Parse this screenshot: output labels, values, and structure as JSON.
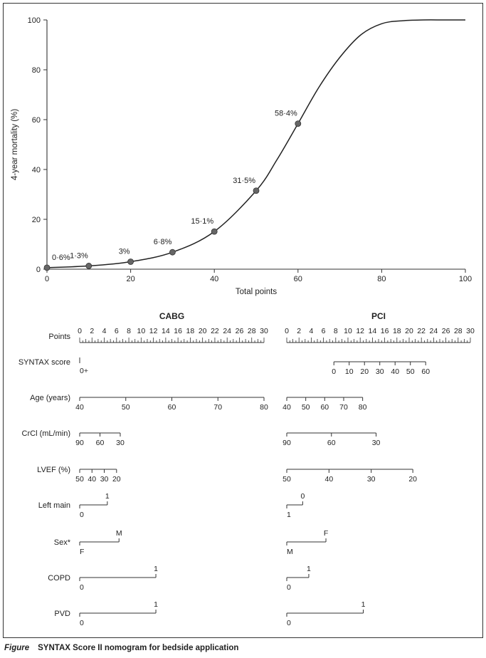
{
  "caption": {
    "label": "Figure",
    "text": "SYNTAX Score II nomogram for bedside application"
  },
  "chart_data": [
    {
      "type": "line",
      "title": "",
      "xlabel": "Total points",
      "ylabel": "4-year mortality (%)",
      "xlim": [
        0,
        100
      ],
      "ylim": [
        0,
        100
      ],
      "x_ticks": [
        0,
        20,
        40,
        60,
        80,
        100
      ],
      "y_ticks": [
        0,
        20,
        40,
        60,
        80,
        100
      ],
      "curve": {
        "x": [
          0,
          10,
          20,
          30,
          40,
          50,
          55,
          60,
          65,
          70,
          75,
          80,
          85,
          90,
          95,
          100
        ],
        "y": [
          0.6,
          1.3,
          3,
          6.8,
          15.1,
          31.5,
          44,
          58.4,
          73,
          85,
          94,
          98.5,
          99.7,
          100,
          100,
          100
        ]
      },
      "points": [
        {
          "x": 0,
          "y": 0.6,
          "label": "0·6%"
        },
        {
          "x": 10,
          "y": 1.3,
          "label": "1·3%"
        },
        {
          "x": 20,
          "y": 3,
          "label": "3%"
        },
        {
          "x": 30,
          "y": 6.8,
          "label": "6·8%"
        },
        {
          "x": 40,
          "y": 15.1,
          "label": "15·1%"
        },
        {
          "x": 50,
          "y": 31.5,
          "label": "31·5%"
        },
        {
          "x": 60,
          "y": 58.4,
          "label": "58·4%"
        }
      ]
    },
    {
      "type": "nomogram",
      "title": "SYNTAX Score II nomogram",
      "points_range": [
        0,
        30
      ],
      "points_tick_labels": [
        0,
        2,
        4,
        6,
        8,
        10,
        12,
        14,
        16,
        18,
        20,
        22,
        24,
        26,
        28,
        30
      ],
      "panels": [
        {
          "name": "CABG",
          "rows": [
            {
              "label": "Points",
              "type": "points"
            },
            {
              "label": "SYNTAX score",
              "type": "marker",
              "ticks": [
                {
                  "pos": 0,
                  "label": "0+"
                }
              ]
            },
            {
              "label": "Age (years)",
              "type": "scale",
              "ticks": [
                {
                  "pos": 0,
                  "label": "40"
                },
                {
                  "pos": 7.5,
                  "label": "50"
                },
                {
                  "pos": 15,
                  "label": "60"
                },
                {
                  "pos": 22.5,
                  "label": "70"
                },
                {
                  "pos": 30,
                  "label": "80"
                }
              ]
            },
            {
              "label": "CrCl (mL/min)",
              "type": "scale",
              "ticks": [
                {
                  "pos": 0,
                  "label": "90"
                },
                {
                  "pos": 3.3,
                  "label": "60"
                },
                {
                  "pos": 6.6,
                  "label": "30"
                }
              ]
            },
            {
              "label": "LVEF (%)",
              "type": "scale",
              "ticks": [
                {
                  "pos": 0,
                  "label": "50"
                },
                {
                  "pos": 2,
                  "label": "40"
                },
                {
                  "pos": 4,
                  "label": "30"
                },
                {
                  "pos": 6,
                  "label": "20"
                }
              ]
            },
            {
              "label": "Left main",
              "type": "binary",
              "low": {
                "pos": 0,
                "label": "0"
              },
              "high": {
                "pos": 4.5,
                "label": "1"
              }
            },
            {
              "label": "Sex*",
              "type": "binary",
              "low": {
                "pos": 0,
                "label": "F"
              },
              "high": {
                "pos": 6.4,
                "label": "M"
              }
            },
            {
              "label": "COPD",
              "type": "binary",
              "low": {
                "pos": 0,
                "label": "0"
              },
              "high": {
                "pos": 12.4,
                "label": "1"
              }
            },
            {
              "label": "PVD",
              "type": "binary",
              "low": {
                "pos": 0,
                "label": "0"
              },
              "high": {
                "pos": 12.4,
                "label": "1"
              }
            }
          ]
        },
        {
          "name": "PCI",
          "rows": [
            {
              "label": "Points",
              "type": "points"
            },
            {
              "label": "SYNTAX score",
              "type": "scale",
              "ticks": [
                {
                  "pos": 7.7,
                  "label": "0"
                },
                {
                  "pos": 10.2,
                  "label": "10"
                },
                {
                  "pos": 12.7,
                  "label": "20"
                },
                {
                  "pos": 15.2,
                  "label": "30"
                },
                {
                  "pos": 17.7,
                  "label": "40"
                },
                {
                  "pos": 20.2,
                  "label": "50"
                },
                {
                  "pos": 22.7,
                  "label": "60"
                }
              ]
            },
            {
              "label": "Age (years)",
              "type": "scale",
              "ticks": [
                {
                  "pos": 0,
                  "label": "40"
                },
                {
                  "pos": 3.1,
                  "label": "50"
                },
                {
                  "pos": 6.2,
                  "label": "60"
                },
                {
                  "pos": 9.3,
                  "label": "70"
                },
                {
                  "pos": 12.4,
                  "label": "80"
                }
              ]
            },
            {
              "label": "CrCl (mL/min)",
              "type": "scale",
              "ticks": [
                {
                  "pos": 0,
                  "label": "90"
                },
                {
                  "pos": 7.3,
                  "label": "60"
                },
                {
                  "pos": 14.6,
                  "label": "30"
                }
              ]
            },
            {
              "label": "LVEF (%)",
              "type": "scale",
              "ticks": [
                {
                  "pos": 0,
                  "label": "50"
                },
                {
                  "pos": 6.9,
                  "label": "40"
                },
                {
                  "pos": 13.8,
                  "label": "30"
                },
                {
                  "pos": 20.6,
                  "label": "20"
                }
              ]
            },
            {
              "label": "Left main",
              "type": "binary",
              "low": {
                "pos": 0,
                "label": "1"
              },
              "high": {
                "pos": 2.6,
                "label": "0"
              }
            },
            {
              "label": "Sex*",
              "type": "binary",
              "low": {
                "pos": 0,
                "label": "M"
              },
              "high": {
                "pos": 6.4,
                "label": "F"
              }
            },
            {
              "label": "COPD",
              "type": "binary",
              "low": {
                "pos": 0,
                "label": "0"
              },
              "high": {
                "pos": 3.6,
                "label": "1"
              }
            },
            {
              "label": "PVD",
              "type": "binary",
              "low": {
                "pos": 0,
                "label": "0"
              },
              "high": {
                "pos": 12.5,
                "label": "1"
              }
            }
          ]
        }
      ]
    }
  ]
}
